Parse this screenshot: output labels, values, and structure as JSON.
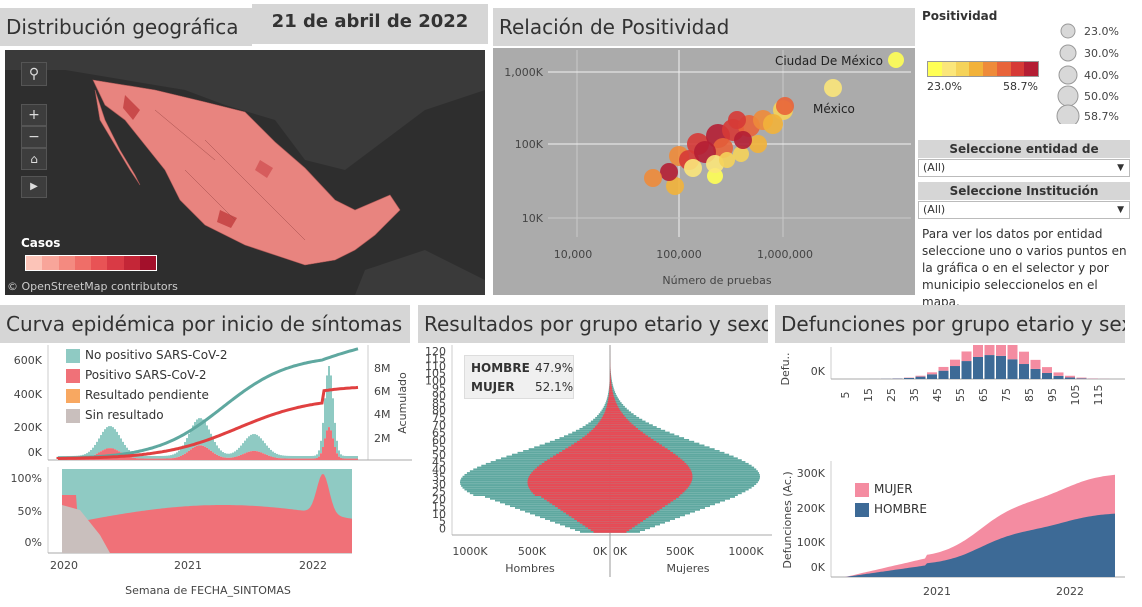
{
  "date_label": "21 de abril de 2022",
  "map": {
    "title": "Distribución geográfica",
    "legend_title": "Casos",
    "attribution": "© OpenStreetMap contributors",
    "legend_colors": [
      "#fcc4b8",
      "#f8a59a",
      "#f48a80",
      "#ef6e68",
      "#e85355",
      "#d93a45",
      "#c42637",
      "#a3102b"
    ]
  },
  "scatter": {
    "title": "Relación de Positividad",
    "xlabel": "Número de pruebas",
    "x_ticks": [
      "10,000",
      "100,000",
      "1,000,000"
    ],
    "y_ticks": [
      "1,000K",
      "100K",
      "10K"
    ],
    "labels": [
      "Ciudad De México",
      "México"
    ]
  },
  "positividad_legend": {
    "title": "Positividad",
    "min": "23.0%",
    "max": "58.7%",
    "size_labels": [
      "23.0%",
      "30.0%",
      "40.0%",
      "50.0%",
      "58.7%"
    ],
    "colors": [
      "#ffff55",
      "#fbe67a",
      "#f5d35a",
      "#f2b23a",
      "#ee8b3a",
      "#e8643a",
      "#d63a36",
      "#b41e34"
    ]
  },
  "filters": {
    "entidad_label": "Seleccione entidad de residencia",
    "entidad_value": "(All)",
    "institucion_label": "Seleccione Institución",
    "institucion_value": "(All)",
    "help_text": "Para ver los datos por entidad seleccione uno o varios puntos en la gráfica o en el selector y por municipio seleccionelos en el mapa."
  },
  "epi": {
    "title": "Curva epidémica por inicio de síntomas",
    "legend": [
      {
        "label": "No positivo SARS-CoV-2",
        "color": "#8fcac3"
      },
      {
        "label": "Positivo SARS-CoV-2",
        "color": "#f07178"
      },
      {
        "label": "Resultado pendiente",
        "color": "#f8a861"
      },
      {
        "label": "Sin resultado",
        "color": "#c9bfbd"
      }
    ],
    "y_ticks": [
      "600K",
      "400K",
      "200K",
      "0K"
    ],
    "y2_ticks": [
      "8M",
      "6M",
      "4M",
      "2M"
    ],
    "y2_label": "Acumulado",
    "pct_ticks": [
      "100%",
      "50%",
      "0%"
    ],
    "x_ticks": [
      "2020",
      "2021",
      "2022"
    ],
    "xlabel": "Semana de FECHA_SINTOMAS"
  },
  "pyramid": {
    "title": "Resultados por grupo etario y sexo",
    "hombre_label": "HOMBRE",
    "hombre_pct": "47.9%",
    "mujer_label": "MUJER",
    "mujer_pct": "52.1%",
    "age_ticks": [
      "120",
      "115",
      "110",
      "105",
      "100",
      "95",
      "90",
      "85",
      "80",
      "75",
      "70",
      "65",
      "60",
      "55",
      "50",
      "45",
      "40",
      "35",
      "30",
      "25",
      "20",
      "15",
      "10",
      "5",
      "0"
    ],
    "left_ticks": [
      "1000K",
      "500K",
      "0K"
    ],
    "right_ticks": [
      "0K",
      "500K",
      "1000K"
    ],
    "left_label": "Hombres",
    "right_label": "Mujeres"
  },
  "deaths": {
    "title": "Defunciones por grupo etario y sexo",
    "top_ylabel": "Defu..",
    "top_ytick": "0K",
    "age_ticks": [
      "5",
      "15",
      "25",
      "35",
      "45",
      "55",
      "65",
      "75",
      "85",
      "95",
      "105",
      "115"
    ],
    "legend": [
      {
        "label": "MUJER",
        "color": "#f48ca1"
      },
      {
        "label": "HOMBRE",
        "color": "#3d6a96"
      }
    ],
    "ylabel": "Defunciones (Ac.)",
    "y_ticks": [
      "300K",
      "200K",
      "100K",
      "0K"
    ],
    "x_ticks": [
      "2021",
      "2022"
    ]
  }
}
